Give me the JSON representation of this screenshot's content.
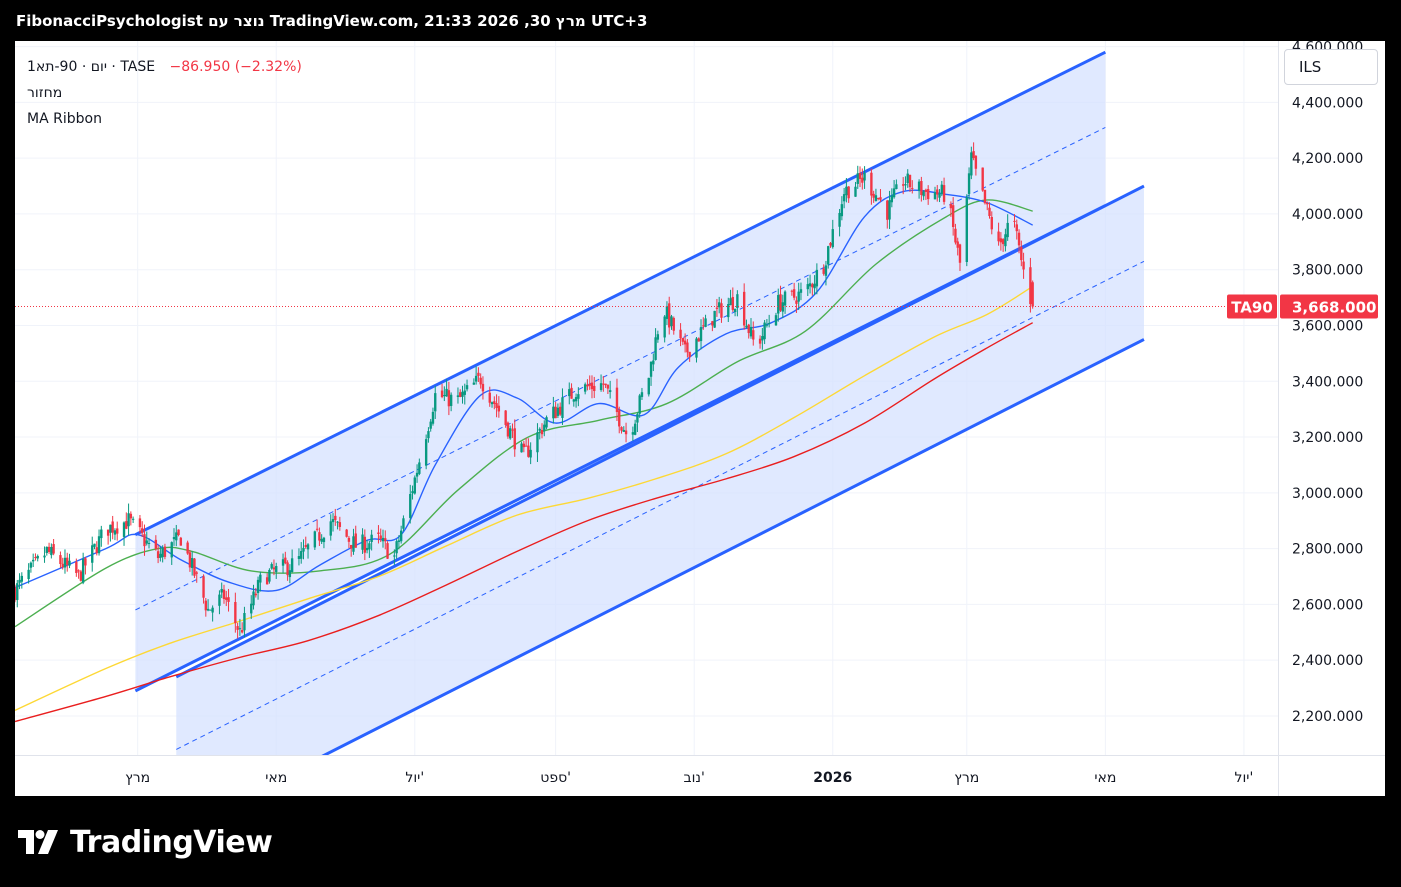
{
  "header": {
    "title": "FibonacciPsychologist נוצר עם TradingView.com, 21:33 2026 ,30 מרץ UTC+3"
  },
  "legend": {
    "symbol": "1יום · 90-תא · TASE",
    "change": "−86.950 (−2.32%)",
    "indicator_1": "מחזור",
    "indicator_2": "MA Ribbon"
  },
  "currency_button": "ILS",
  "price_label": {
    "ticker": "TA90",
    "value": "3,668.000"
  },
  "footer": {
    "brand": "TradingView"
  },
  "colors": {
    "up": "#089981",
    "down": "#f23645",
    "channel_line": "#2962ff",
    "channel_fill": "#d6e2ff",
    "ma_fast": "#2962ff",
    "ma_mid": "#4caf50",
    "ma_slow": "#fdd835",
    "ma_long": "#e91e1e",
    "last_price": "#f23645"
  },
  "chart_data": {
    "type": "candlestick",
    "y_axis": {
      "ylim": [
        2060,
        4620
      ],
      "ticks": [
        2200,
        2400,
        2600,
        2800,
        3000,
        3200,
        3400,
        3600,
        3800,
        4000,
        4200,
        4400,
        4600
      ],
      "tick_labels": [
        "2,200.000",
        "2,400.000",
        "2,600.000",
        "2,800.000",
        "3,000.000",
        "3,200.000",
        "3,400.000",
        "3,600.000",
        "3,800.000",
        "4,000.000",
        "4,200.000",
        "4,400.000",
        "4,600.000"
      ]
    },
    "x_axis": {
      "range": [
        "2025-01-06",
        "2026-07-16"
      ],
      "ticks": [
        {
          "date": "2025-03-01",
          "label": "מרץ",
          "bold": false
        },
        {
          "date": "2025-05-01",
          "label": "מאי",
          "bold": false
        },
        {
          "date": "2025-07-01",
          "label": "יול'",
          "bold": false
        },
        {
          "date": "2025-09-01",
          "label": "ספט'",
          "bold": false
        },
        {
          "date": "2025-11-01",
          "label": "נוב'",
          "bold": false
        },
        {
          "date": "2026-01-01",
          "label": "2026",
          "bold": true
        },
        {
          "date": "2026-03-01",
          "label": "מרץ",
          "bold": false
        },
        {
          "date": "2026-05-01",
          "label": "מאי",
          "bold": false
        },
        {
          "date": "2026-07-01",
          "label": "יול'",
          "bold": false
        }
      ]
    },
    "price_anchors": [
      [
        "2025-01-06",
        2650
      ],
      [
        "2025-01-20",
        2790
      ],
      [
        "2025-02-03",
        2700
      ],
      [
        "2025-02-15",
        2870
      ],
      [
        "2025-02-25",
        2900
      ],
      [
        "2025-03-10",
        2770
      ],
      [
        "2025-03-20",
        2840
      ],
      [
        "2025-04-01",
        2580
      ],
      [
        "2025-04-08",
        2630
      ],
      [
        "2025-04-15",
        2500
      ],
      [
        "2025-04-25",
        2700
      ],
      [
        "2025-05-10",
        2750
      ],
      [
        "2025-05-25",
        2900
      ],
      [
        "2025-06-05",
        2810
      ],
      [
        "2025-06-15",
        2830
      ],
      [
        "2025-06-22",
        2770
      ],
      [
        "2025-07-01",
        3050
      ],
      [
        "2025-07-10",
        3350
      ],
      [
        "2025-07-20",
        3330
      ],
      [
        "2025-07-30",
        3410
      ],
      [
        "2025-08-08",
        3280
      ],
      [
        "2025-08-18",
        3130
      ],
      [
        "2025-08-28",
        3260
      ],
      [
        "2025-09-10",
        3370
      ],
      [
        "2025-09-22",
        3390
      ],
      [
        "2025-10-03",
        3200
      ],
      [
        "2025-10-12",
        3420
      ],
      [
        "2025-10-18",
        3670
      ],
      [
        "2025-10-28",
        3500
      ],
      [
        "2025-11-10",
        3640
      ],
      [
        "2025-11-20",
        3700
      ],
      [
        "2025-11-28",
        3520
      ],
      [
        "2025-12-08",
        3680
      ],
      [
        "2025-12-20",
        3720
      ],
      [
        "2025-12-28",
        3820
      ],
      [
        "2026-01-06",
        4080
      ],
      [
        "2026-01-15",
        4130
      ],
      [
        "2026-01-25",
        4010
      ],
      [
        "2026-02-01",
        4120
      ],
      [
        "2026-02-10",
        4080
      ],
      [
        "2026-02-20",
        4070
      ],
      [
        "2026-02-26",
        3820
      ],
      [
        "2026-03-03",
        4200
      ],
      [
        "2026-03-08",
        4060
      ],
      [
        "2026-03-15",
        3880
      ],
      [
        "2026-03-21",
        3990
      ],
      [
        "2026-03-27",
        3755
      ],
      [
        "2026-03-30",
        3668
      ]
    ],
    "last_price": 3668,
    "moving_averages": [
      {
        "color": "ma_fast",
        "points": [
          [
            "2025-01-06",
            2660
          ],
          [
            "2025-02-15",
            2800
          ],
          [
            "2025-03-01",
            2850
          ],
          [
            "2025-03-20",
            2760
          ],
          [
            "2025-04-10",
            2680
          ],
          [
            "2025-05-01",
            2650
          ],
          [
            "2025-05-20",
            2740
          ],
          [
            "2025-06-10",
            2830
          ],
          [
            "2025-06-25",
            2850
          ],
          [
            "2025-07-10",
            3100
          ],
          [
            "2025-07-30",
            3350
          ],
          [
            "2025-08-15",
            3340
          ],
          [
            "2025-09-01",
            3250
          ],
          [
            "2025-09-20",
            3320
          ],
          [
            "2025-10-10",
            3280
          ],
          [
            "2025-10-25",
            3450
          ],
          [
            "2025-11-15",
            3570
          ],
          [
            "2025-12-05",
            3610
          ],
          [
            "2025-12-25",
            3720
          ],
          [
            "2026-01-15",
            3990
          ],
          [
            "2026-02-01",
            4080
          ],
          [
            "2026-02-20",
            4070
          ],
          [
            "2026-03-10",
            4040
          ],
          [
            "2026-03-30",
            3960
          ]
        ]
      },
      {
        "color": "ma_mid",
        "points": [
          [
            "2025-01-06",
            2520
          ],
          [
            "2025-02-15",
            2730
          ],
          [
            "2025-03-10",
            2800
          ],
          [
            "2025-03-25",
            2790
          ],
          [
            "2025-04-20",
            2720
          ],
          [
            "2025-05-20",
            2720
          ],
          [
            "2025-06-20",
            2780
          ],
          [
            "2025-07-20",
            3010
          ],
          [
            "2025-08-20",
            3200
          ],
          [
            "2025-09-20",
            3260
          ],
          [
            "2025-10-20",
            3320
          ],
          [
            "2025-11-20",
            3470
          ],
          [
            "2025-12-20",
            3580
          ],
          [
            "2026-01-20",
            3820
          ],
          [
            "2026-02-20",
            3990
          ],
          [
            "2026-03-10",
            4050
          ],
          [
            "2026-03-30",
            4010
          ]
        ]
      },
      {
        "color": "ma_slow",
        "points": [
          [
            "2025-01-06",
            2220
          ],
          [
            "2025-02-15",
            2370
          ],
          [
            "2025-03-15",
            2460
          ],
          [
            "2025-04-15",
            2540
          ],
          [
            "2025-05-15",
            2620
          ],
          [
            "2025-06-15",
            2700
          ],
          [
            "2025-07-15",
            2810
          ],
          [
            "2025-08-15",
            2920
          ],
          [
            "2025-09-15",
            2980
          ],
          [
            "2025-10-15",
            3050
          ],
          [
            "2025-11-15",
            3140
          ],
          [
            "2025-12-15",
            3270
          ],
          [
            "2026-01-15",
            3420
          ],
          [
            "2026-02-15",
            3560
          ],
          [
            "2026-03-10",
            3640
          ],
          [
            "2026-03-30",
            3740
          ]
        ]
      },
      {
        "color": "ma_long",
        "points": [
          [
            "2025-01-06",
            2180
          ],
          [
            "2025-02-15",
            2270
          ],
          [
            "2025-03-15",
            2340
          ],
          [
            "2025-04-15",
            2410
          ],
          [
            "2025-05-15",
            2470
          ],
          [
            "2025-06-15",
            2560
          ],
          [
            "2025-07-15",
            2670
          ],
          [
            "2025-08-15",
            2790
          ],
          [
            "2025-09-15",
            2900
          ],
          [
            "2025-10-15",
            2980
          ],
          [
            "2025-11-15",
            3050
          ],
          [
            "2025-12-15",
            3130
          ],
          [
            "2026-01-15",
            3250
          ],
          [
            "2026-02-15",
            3410
          ],
          [
            "2026-03-10",
            3520
          ],
          [
            "2026-03-30",
            3610
          ]
        ]
      }
    ],
    "channels": [
      {
        "start": "2025-02-28",
        "end": "2026-05-01",
        "lines": [
          {
            "from": 2850,
            "to": 4580,
            "style": "solid"
          },
          {
            "from": 2580,
            "to": 4310,
            "style": "dashed"
          },
          {
            "from": 2290,
            "to": 4030,
            "style": "solid"
          }
        ]
      },
      {
        "start": "2025-03-18",
        "end": "2026-05-18",
        "lines": [
          {
            "from": 2340,
            "to": 4100,
            "style": "solid"
          },
          {
            "from": 2080,
            "to": 3830,
            "style": "dashed"
          },
          {
            "from": 1790,
            "to": 3550,
            "style": "solid"
          }
        ]
      }
    ]
  }
}
